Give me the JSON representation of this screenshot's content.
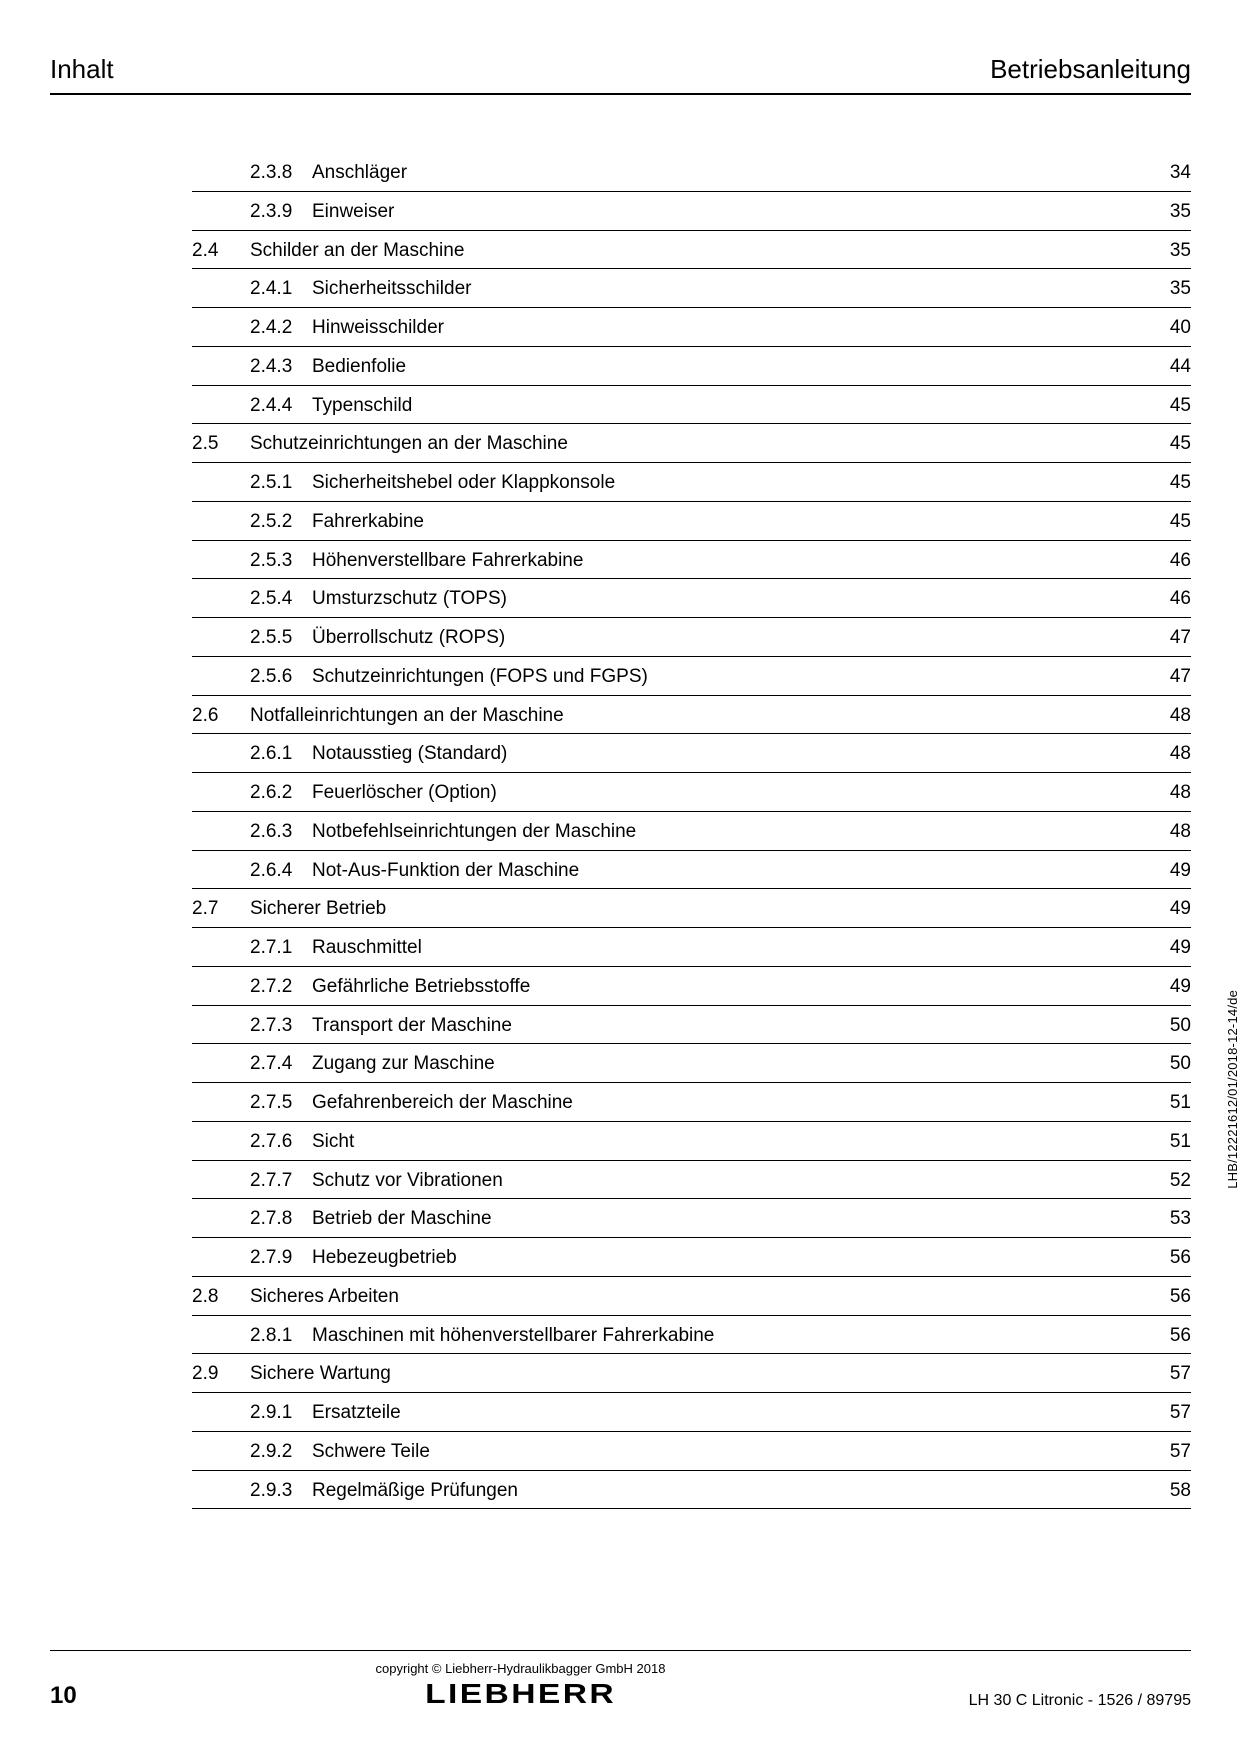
{
  "header": {
    "left": "Inhalt",
    "right": "Betriebsanleitung"
  },
  "toc": [
    {
      "type": "sub",
      "section": "",
      "sub": "2.3.8",
      "title": "Anschläger",
      "page": "34"
    },
    {
      "type": "sub",
      "section": "",
      "sub": "2.3.9",
      "title": "Einweiser",
      "page": "35"
    },
    {
      "type": "section",
      "section": "2.4",
      "sub": "",
      "title": "Schilder an der Maschine",
      "page": "35"
    },
    {
      "type": "sub",
      "section": "",
      "sub": "2.4.1",
      "title": "Sicherheitsschilder",
      "page": "35"
    },
    {
      "type": "sub",
      "section": "",
      "sub": "2.4.2",
      "title": "Hinweisschilder",
      "page": "40"
    },
    {
      "type": "sub",
      "section": "",
      "sub": "2.4.3",
      "title": "Bedienfolie",
      "page": "44"
    },
    {
      "type": "sub",
      "section": "",
      "sub": "2.4.4",
      "title": "Typenschild",
      "page": "45"
    },
    {
      "type": "section",
      "section": "2.5",
      "sub": "",
      "title": "Schutzeinrichtungen an der Maschine",
      "page": "45"
    },
    {
      "type": "sub",
      "section": "",
      "sub": "2.5.1",
      "title": "Sicherheitshebel oder Klappkonsole",
      "page": "45"
    },
    {
      "type": "sub",
      "section": "",
      "sub": "2.5.2",
      "title": "Fahrerkabine",
      "page": "45"
    },
    {
      "type": "sub",
      "section": "",
      "sub": "2.5.3",
      "title": "Höhenverstellbare Fahrerkabine",
      "page": "46"
    },
    {
      "type": "sub",
      "section": "",
      "sub": "2.5.4",
      "title": "Umsturzschutz (TOPS)",
      "page": "46"
    },
    {
      "type": "sub",
      "section": "",
      "sub": "2.5.5",
      "title": "Überrollschutz (ROPS)",
      "page": "47"
    },
    {
      "type": "sub",
      "section": "",
      "sub": "2.5.6",
      "title": "Schutzeinrichtungen (FOPS und FGPS)",
      "page": "47"
    },
    {
      "type": "section",
      "section": "2.6",
      "sub": "",
      "title": "Notfalleinrichtungen an der Maschine",
      "page": "48"
    },
    {
      "type": "sub",
      "section": "",
      "sub": "2.6.1",
      "title": "Notausstieg (Standard)",
      "page": "48"
    },
    {
      "type": "sub",
      "section": "",
      "sub": "2.6.2",
      "title": "Feuerlöscher (Option)",
      "page": "48"
    },
    {
      "type": "sub",
      "section": "",
      "sub": "2.6.3",
      "title": "Notbefehlseinrichtungen der Maschine",
      "page": "48"
    },
    {
      "type": "sub",
      "section": "",
      "sub": "2.6.4",
      "title": "Not-Aus-Funktion der Maschine",
      "page": "49"
    },
    {
      "type": "section",
      "section": "2.7",
      "sub": "",
      "title": "Sicherer Betrieb",
      "page": "49"
    },
    {
      "type": "sub",
      "section": "",
      "sub": "2.7.1",
      "title": "Rauschmittel",
      "page": "49"
    },
    {
      "type": "sub",
      "section": "",
      "sub": "2.7.2",
      "title": "Gefährliche Betriebsstoffe",
      "page": "49"
    },
    {
      "type": "sub",
      "section": "",
      "sub": "2.7.3",
      "title": "Transport der Maschine",
      "page": "50"
    },
    {
      "type": "sub",
      "section": "",
      "sub": "2.7.4",
      "title": "Zugang zur Maschine",
      "page": "50"
    },
    {
      "type": "sub",
      "section": "",
      "sub": "2.7.5",
      "title": "Gefahrenbereich der Maschine",
      "page": "51"
    },
    {
      "type": "sub",
      "section": "",
      "sub": "2.7.6",
      "title": "Sicht",
      "page": "51"
    },
    {
      "type": "sub",
      "section": "",
      "sub": "2.7.7",
      "title": "Schutz vor Vibrationen",
      "page": "52"
    },
    {
      "type": "sub",
      "section": "",
      "sub": "2.7.8",
      "title": "Betrieb der Maschine",
      "page": "53"
    },
    {
      "type": "sub",
      "section": "",
      "sub": "2.7.9",
      "title": "Hebezeugbetrieb",
      "page": "56"
    },
    {
      "type": "section",
      "section": "2.8",
      "sub": "",
      "title": "Sicheres Arbeiten",
      "page": "56"
    },
    {
      "type": "sub",
      "section": "",
      "sub": "2.8.1",
      "title": "Maschinen mit höhenverstellbarer Fahrerkabine",
      "page": "56"
    },
    {
      "type": "section",
      "section": "2.9",
      "sub": "",
      "title": "Sichere Wartung",
      "page": "57"
    },
    {
      "type": "sub",
      "section": "",
      "sub": "2.9.1",
      "title": "Ersatzteile",
      "page": "57"
    },
    {
      "type": "sub",
      "section": "",
      "sub": "2.9.2",
      "title": "Schwere Teile",
      "page": "57"
    },
    {
      "type": "sub",
      "section": "",
      "sub": "2.9.3",
      "title": "Regelmäßige Prüfungen",
      "page": "58"
    }
  ],
  "vertical_code": "LHB/12221612/01/2018-12-14/de",
  "footer": {
    "page_number": "10",
    "copyright": "copyright © Liebherr-Hydraulikbagger GmbH 2018",
    "logo": "LIEBHERR",
    "doc_id": "LH 30 C Litronic  - 1526 / 89795"
  }
}
